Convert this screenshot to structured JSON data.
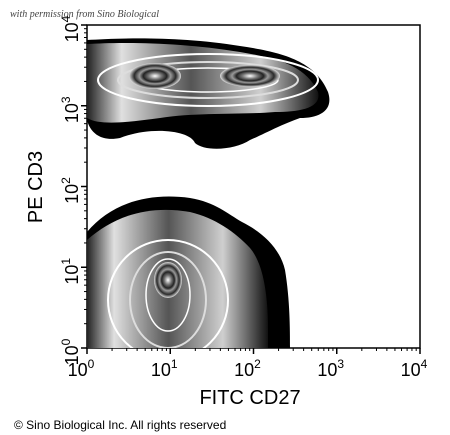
{
  "permission_note": "with permission from Sino Biological",
  "copyright": "© Sino Biological Inc. All rights reserved",
  "chart_data": {
    "type": "contour",
    "xlabel": "FITC CD27",
    "ylabel": "PE CD3",
    "x_scale": "log",
    "y_scale": "log",
    "xlim": [
      1,
      10000
    ],
    "ylim": [
      1,
      10000
    ],
    "x_ticks": [
      {
        "value": 1,
        "base": "10",
        "exp": "0"
      },
      {
        "value": 10,
        "base": "10",
        "exp": "1"
      },
      {
        "value": 100,
        "base": "10",
        "exp": "2"
      },
      {
        "value": 1000,
        "base": "10",
        "exp": "3"
      },
      {
        "value": 10000,
        "base": "10",
        "exp": "4"
      }
    ],
    "y_ticks": [
      {
        "value": 1,
        "base": "10",
        "exp": "0"
      },
      {
        "value": 10,
        "base": "10",
        "exp": "1"
      },
      {
        "value": 100,
        "base": "10",
        "exp": "2"
      },
      {
        "value": 1000,
        "base": "10",
        "exp": "3"
      },
      {
        "value": 10000,
        "base": "10",
        "exp": "4"
      }
    ],
    "populations": [
      {
        "cx": 10,
        "cy": 2000,
        "rx_dec": 0.42,
        "ry_dec": 0.3
      },
      {
        "cx": 110,
        "cy": 1900,
        "rx_dec": 0.45,
        "ry_dec": 0.22
      },
      {
        "cx": 13,
        "cy": 8,
        "rx_dec": 0.42,
        "ry_dec": 0.6
      }
    ],
    "grid": false,
    "legend": "none"
  }
}
